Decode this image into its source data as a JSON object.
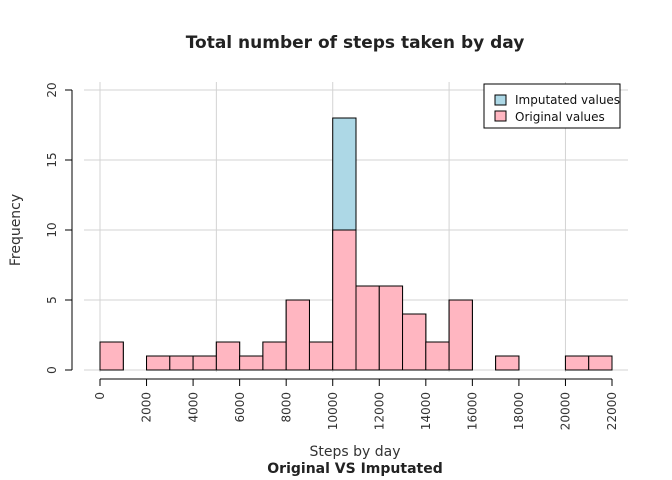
{
  "chart_data": {
    "type": "bar",
    "title": "Total number of steps taken by day",
    "subtitle": "Original VS Imputated",
    "xlabel": "Steps by day",
    "ylabel": "Frequency",
    "xlim": [
      0,
      22000
    ],
    "ylim": [
      0,
      20
    ],
    "bin_width": 1000,
    "x_ticks": [
      0,
      2000,
      4000,
      6000,
      8000,
      10000,
      12000,
      14000,
      16000,
      18000,
      20000,
      22000
    ],
    "y_ticks": [
      0,
      5,
      10,
      15,
      20
    ],
    "grid_x": [
      0,
      5000,
      10000,
      15000,
      20000
    ],
    "grid_y": [
      0,
      5,
      10,
      15,
      20
    ],
    "grid": true,
    "legend_position": "top-right",
    "bin_starts": [
      0,
      1000,
      2000,
      3000,
      4000,
      5000,
      6000,
      7000,
      8000,
      9000,
      10000,
      11000,
      12000,
      13000,
      14000,
      15000,
      16000,
      17000,
      18000,
      19000,
      20000,
      21000
    ],
    "series": [
      {
        "name": "Imputated values",
        "color": "#add8e6",
        "values": [
          2,
          0,
          1,
          1,
          1,
          2,
          1,
          2,
          5,
          2,
          18,
          6,
          6,
          4,
          2,
          5,
          0,
          1,
          0,
          0,
          1,
          1
        ]
      },
      {
        "name": "Original values",
        "color": "#ffb6c1",
        "values": [
          2,
          0,
          1,
          1,
          1,
          2,
          1,
          2,
          5,
          2,
          10,
          6,
          6,
          4,
          2,
          5,
          0,
          1,
          0,
          0,
          1,
          1
        ]
      }
    ]
  }
}
